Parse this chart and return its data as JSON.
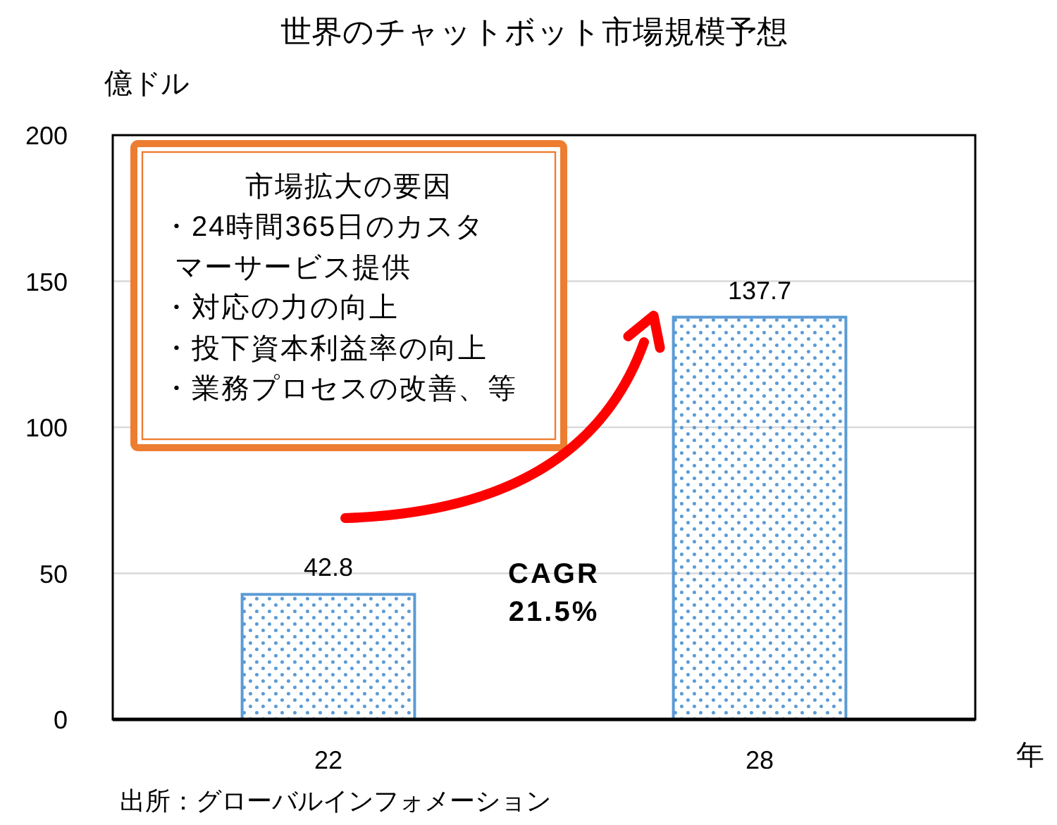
{
  "chart_data": {
    "type": "bar",
    "title": "世界のチャットボット市場規模予想",
    "ylabel": "億ドル",
    "xlabel": "年",
    "categories": [
      "22",
      "28"
    ],
    "values": [
      42.8,
      137.7
    ],
    "color": "#5b9bd5",
    "ylim": [
      0,
      200
    ],
    "yticks": [
      0,
      50,
      100,
      150,
      200
    ],
    "grid": "y",
    "data_labels": true,
    "annotations": [
      "市場拡大の要因",
      "・24時間365日のカスタマーサービス提供",
      "・対応の力の向上",
      "・投下資本利益率の向上",
      "・業務プロセスの改善、等",
      "CAGR\n21.5%",
      "出所：グローバルインフォメーション"
    ]
  }
}
